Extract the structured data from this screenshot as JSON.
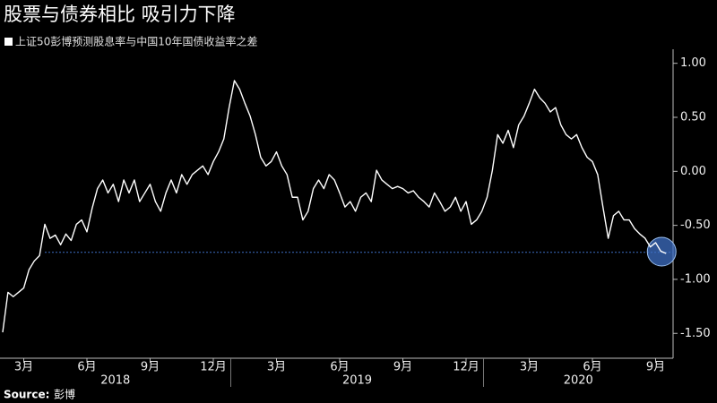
{
  "chart_data": {
    "type": "line",
    "title": "股票与债券相比 吸引力下降",
    "source_label": "Source:",
    "source": "彭博",
    "years": [
      "2018",
      "2019",
      "2020"
    ],
    "categories": [
      null,
      null,
      null,
      null,
      "3月",
      null,
      null,
      null,
      null,
      null,
      null,
      null,
      null,
      null,
      null,
      null,
      "6月",
      null,
      null,
      null,
      null,
      null,
      null,
      null,
      null,
      null,
      null,
      null,
      "9月",
      null,
      null,
      null,
      null,
      null,
      null,
      null,
      null,
      null,
      null,
      null,
      "12月",
      null,
      null,
      null,
      null,
      null,
      null,
      null,
      null,
      null,
      null,
      null,
      "3月",
      null,
      null,
      null,
      null,
      null,
      null,
      null,
      null,
      null,
      null,
      null,
      "6月",
      null,
      null,
      null,
      null,
      null,
      null,
      null,
      null,
      null,
      null,
      null,
      "9月",
      null,
      null,
      null,
      null,
      null,
      null,
      null,
      null,
      null,
      null,
      null,
      "12月",
      null,
      null,
      null,
      null,
      null,
      null,
      null,
      null,
      null,
      null,
      null,
      "3月",
      null,
      null,
      null,
      null,
      null,
      null,
      null,
      null,
      null,
      null,
      null,
      "6月",
      null,
      null,
      null,
      null,
      null,
      null,
      null,
      null,
      null,
      null,
      null,
      "9月",
      null,
      null
    ],
    "series": [
      {
        "name": "上证50彭博预测股息率与中国10年国债收益率之差",
        "color": "#ffffff",
        "values": [
          -1.49,
          -1.12,
          -1.16,
          -1.12,
          -1.08,
          -0.91,
          -0.83,
          -0.78,
          -0.49,
          -0.62,
          -0.59,
          -0.68,
          -0.58,
          -0.64,
          -0.49,
          -0.45,
          -0.56,
          -0.34,
          -0.16,
          -0.08,
          -0.2,
          -0.12,
          -0.28,
          -0.08,
          -0.2,
          -0.08,
          -0.28,
          -0.2,
          -0.12,
          -0.28,
          -0.37,
          -0.2,
          -0.08,
          -0.2,
          -0.03,
          -0.12,
          -0.03,
          0.01,
          0.05,
          -0.03,
          0.09,
          0.18,
          0.3,
          0.59,
          0.84,
          0.76,
          0.63,
          0.51,
          0.34,
          0.13,
          0.05,
          0.09,
          0.18,
          0.05,
          -0.03,
          -0.24,
          -0.24,
          -0.45,
          -0.37,
          -0.16,
          -0.08,
          -0.16,
          -0.03,
          -0.08,
          -0.2,
          -0.33,
          -0.28,
          -0.37,
          -0.24,
          -0.2,
          -0.28,
          0.01,
          -0.08,
          -0.12,
          -0.16,
          -0.14,
          -0.16,
          -0.2,
          -0.18,
          -0.24,
          -0.28,
          -0.33,
          -0.2,
          -0.28,
          -0.37,
          -0.33,
          -0.24,
          -0.37,
          -0.28,
          -0.49,
          -0.45,
          -0.37,
          -0.24,
          0.01,
          0.34,
          0.26,
          0.38,
          0.22,
          0.43,
          0.51,
          0.63,
          0.76,
          0.68,
          0.63,
          0.55,
          0.59,
          0.43,
          0.34,
          0.3,
          0.34,
          0.22,
          0.13,
          0.09,
          -0.03,
          -0.33,
          -0.62,
          -0.41,
          -0.37,
          -0.45,
          -0.45,
          -0.53,
          -0.58,
          -0.62,
          -0.7,
          -0.66,
          -0.74,
          -0.76
        ]
      }
    ],
    "reference_line": -0.75,
    "reference_color": "#3d6fc4",
    "ylim": [
      -1.73,
      1.13
    ],
    "yticks": [
      {
        "value": 1,
        "label": "1.00"
      },
      {
        "value": 0.5,
        "label": "0.50"
      },
      {
        "value": 0,
        "label": "0.00"
      },
      {
        "value": -0.5,
        "label": "-0.50"
      },
      {
        "value": -1,
        "label": "-1.00"
      },
      {
        "value": -1.5,
        "label": "-1.50"
      }
    ]
  }
}
